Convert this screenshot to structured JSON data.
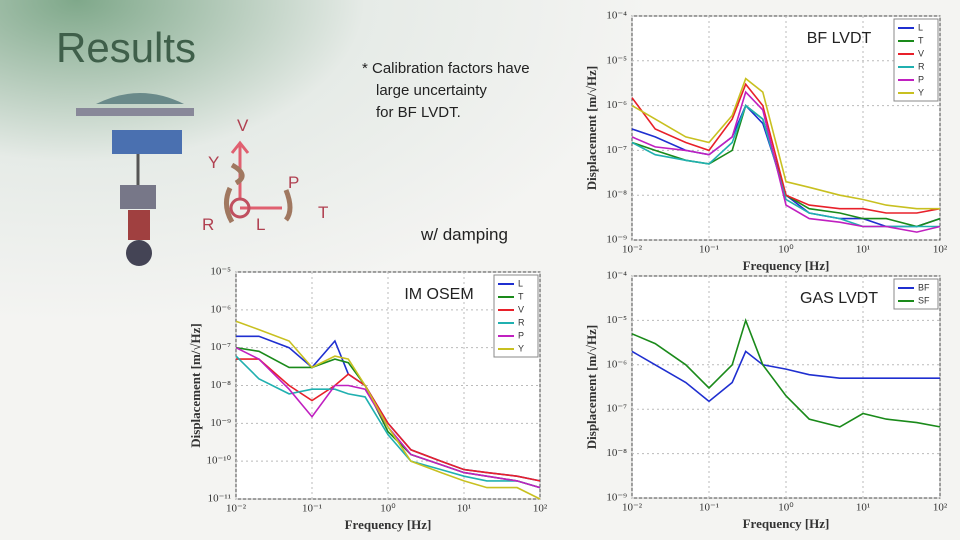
{
  "slide": {
    "title": "Results",
    "note": [
      "* Calibration factors have",
      "large uncertainty",
      "for BF LVDT."
    ],
    "caption": "w/ damping",
    "dof_labels": [
      "V",
      "Y",
      "P",
      "R",
      "L",
      "T"
    ]
  },
  "chart_data": [
    {
      "type": "line",
      "title": "BF LVDT",
      "x_label": "Frequency [Hz]",
      "y_label": "Displacement [m/√Hz]",
      "log_x": true,
      "log_y": true,
      "grid": true,
      "legend": "upper right",
      "x": [
        0.01,
        0.02,
        0.05,
        0.1,
        0.2,
        0.3,
        0.5,
        1,
        2,
        5,
        10,
        20,
        50,
        100
      ],
      "xlim": [
        0.01,
        100
      ],
      "xticks": [
        {
          "value": 0.01,
          "label": "10⁻²"
        },
        {
          "value": 0.1,
          "label": "10⁻¹"
        },
        {
          "value": 1,
          "label": "10⁰"
        },
        {
          "value": 10,
          "label": "10¹"
        },
        {
          "value": 100,
          "label": "10²"
        }
      ],
      "ylim": [
        1e-09,
        0.0001
      ],
      "yticks": [
        {
          "value": 0.0001,
          "label": "10⁻⁴"
        },
        {
          "value": 1e-05,
          "label": "10⁻⁵"
        },
        {
          "value": 1e-06,
          "label": "10⁻⁶"
        },
        {
          "value": 1e-07,
          "label": "10⁻⁷"
        },
        {
          "value": 1e-08,
          "label": "10⁻⁸"
        },
        {
          "value": 1e-09,
          "label": "10⁻⁹"
        }
      ],
      "series": [
        {
          "name": "L",
          "color": "#1f2fd0",
          "values": [
            3e-07,
            2e-07,
            1e-07,
            8e-08,
            2e-07,
            1e-06,
            4e-07,
            1e-08,
            4e-09,
            3e-09,
            3e-09,
            2e-09,
            2e-09,
            3e-09
          ]
        },
        {
          "name": "T",
          "color": "#1a8a1a",
          "values": [
            1.5e-07,
            1e-07,
            6e-08,
            5e-08,
            1e-07,
            1e-06,
            5e-07,
            1e-08,
            5e-09,
            4e-09,
            3e-09,
            3e-09,
            2e-09,
            3e-09
          ]
        },
        {
          "name": "V",
          "color": "#e8202a",
          "values": [
            1.5e-06,
            3e-07,
            1.5e-07,
            1e-07,
            5e-07,
            3e-06,
            1e-06,
            1e-08,
            6e-09,
            5e-09,
            5e-09,
            4e-09,
            4e-09,
            5e-09
          ]
        },
        {
          "name": "R",
          "color": "#20b0b0",
          "values": [
            1.5e-07,
            8e-08,
            6e-08,
            5e-08,
            1.5e-07,
            1e-06,
            5e-07,
            8e-09,
            4e-09,
            3e-09,
            2e-09,
            2e-09,
            2e-09,
            2e-09
          ]
        },
        {
          "name": "P",
          "color": "#c020c0",
          "values": [
            2e-07,
            1.2e-07,
            1e-07,
            8e-08,
            2e-07,
            2e-06,
            8e-07,
            6e-09,
            3e-09,
            2.5e-09,
            2e-09,
            2e-09,
            1.5e-09,
            2e-09
          ]
        },
        {
          "name": "Y",
          "color": "#c8c020",
          "values": [
            1e-06,
            5e-07,
            2e-07,
            1.5e-07,
            6e-07,
            4e-06,
            2e-06,
            2e-08,
            1.5e-08,
            1e-08,
            8e-09,
            6e-09,
            5e-09,
            5e-09
          ]
        }
      ]
    },
    {
      "type": "line",
      "title": "IM OSEM",
      "x_label": "Frequency [Hz]",
      "y_label": "Displacement [m/√Hz]",
      "log_x": true,
      "log_y": true,
      "grid": true,
      "legend": "upper right",
      "x": [
        0.01,
        0.02,
        0.05,
        0.1,
        0.2,
        0.3,
        0.5,
        1,
        2,
        5,
        10,
        20,
        50,
        100
      ],
      "xlim": [
        0.01,
        100
      ],
      "xticks": [
        {
          "value": 0.01,
          "label": "10⁻²"
        },
        {
          "value": 0.1,
          "label": "10⁻¹"
        },
        {
          "value": 1,
          "label": "10⁰"
        },
        {
          "value": 10,
          "label": "10¹"
        },
        {
          "value": 100,
          "label": "10²"
        }
      ],
      "ylim": [
        1e-11,
        1e-05
      ],
      "yticks": [
        {
          "value": 1e-05,
          "label": "10⁻⁵"
        },
        {
          "value": 1e-06,
          "label": "10⁻⁶"
        },
        {
          "value": 1e-07,
          "label": "10⁻⁷"
        },
        {
          "value": 1e-08,
          "label": "10⁻⁸"
        },
        {
          "value": 1e-09,
          "label": "10⁻⁹"
        },
        {
          "value": 1e-10,
          "label": "10⁻¹⁰"
        },
        {
          "value": 1e-11,
          "label": "10⁻¹¹"
        }
      ],
      "series": [
        {
          "name": "L",
          "color": "#1f2fd0",
          "values": [
            2e-07,
            2e-07,
            1e-07,
            3e-08,
            1.5e-07,
            2e-08,
            1e-08,
            1e-09,
            2e-10,
            1e-10,
            6e-11,
            5e-11,
            4e-11,
            3e-11
          ]
        },
        {
          "name": "T",
          "color": "#1a8a1a",
          "values": [
            1e-07,
            8e-08,
            3e-08,
            3e-08,
            5e-08,
            4e-08,
            1e-08,
            6e-10,
            1.5e-10,
            8e-11,
            5e-11,
            4e-11,
            3e-11,
            2e-11
          ]
        },
        {
          "name": "V",
          "color": "#e8202a",
          "values": [
            5e-08,
            5e-08,
            1e-08,
            4e-09,
            1e-08,
            2e-08,
            1e-08,
            1e-09,
            2e-10,
            1e-10,
            6e-11,
            5e-11,
            4e-11,
            3e-11
          ]
        },
        {
          "name": "R",
          "color": "#20b0b0",
          "values": [
            6e-08,
            1.5e-08,
            6e-09,
            8e-09,
            8e-09,
            6e-09,
            5e-09,
            5e-10,
            1e-10,
            6e-11,
            4e-11,
            3e-11,
            3e-11,
            2e-11
          ]
        },
        {
          "name": "P",
          "color": "#c020c0",
          "values": [
            1e-07,
            5e-08,
            8e-09,
            1.5e-09,
            1e-08,
            1e-08,
            8e-09,
            8e-10,
            1.5e-10,
            8e-11,
            5e-11,
            4e-11,
            3e-11,
            2e-11
          ]
        },
        {
          "name": "Y",
          "color": "#c8c020",
          "values": [
            5e-07,
            3e-07,
            1.5e-07,
            3e-08,
            6e-08,
            5e-08,
            1e-08,
            8e-10,
            1e-10,
            5e-11,
            3e-11,
            2e-11,
            2e-11,
            1e-11
          ]
        }
      ]
    },
    {
      "type": "line",
      "title": "GAS LVDT",
      "x_label": "Frequency [Hz]",
      "y_label": "Displacement [m/√Hz]",
      "log_x": true,
      "log_y": true,
      "grid": true,
      "legend": "upper right",
      "x": [
        0.01,
        0.02,
        0.05,
        0.1,
        0.2,
        0.3,
        0.5,
        1,
        2,
        5,
        10,
        20,
        50,
        100
      ],
      "xlim": [
        0.01,
        100
      ],
      "xticks": [
        {
          "value": 0.01,
          "label": "10⁻²"
        },
        {
          "value": 0.1,
          "label": "10⁻¹"
        },
        {
          "value": 1,
          "label": "10⁰"
        },
        {
          "value": 10,
          "label": "10¹"
        },
        {
          "value": 100,
          "label": "10²"
        }
      ],
      "ylim": [
        1e-09,
        0.0001
      ],
      "yticks": [
        {
          "value": 0.0001,
          "label": "10⁻⁴"
        },
        {
          "value": 1e-05,
          "label": "10⁻⁵"
        },
        {
          "value": 1e-06,
          "label": "10⁻⁶"
        },
        {
          "value": 1e-07,
          "label": "10⁻⁷"
        },
        {
          "value": 1e-08,
          "label": "10⁻⁸"
        },
        {
          "value": 1e-09,
          "label": "10⁻⁹"
        }
      ],
      "series": [
        {
          "name": "BF",
          "color": "#1f2fd0",
          "values": [
            2e-06,
            1e-06,
            4e-07,
            1.5e-07,
            4e-07,
            2e-06,
            1e-06,
            8e-07,
            6e-07,
            5e-07,
            5e-07,
            5e-07,
            5e-07,
            5e-07
          ]
        },
        {
          "name": "SF",
          "color": "#1a8a1a",
          "values": [
            5e-06,
            3e-06,
            1e-06,
            3e-07,
            1e-06,
            1e-05,
            1e-06,
            2e-07,
            6e-08,
            4e-08,
            8e-08,
            6e-08,
            5e-08,
            4e-08
          ]
        }
      ]
    }
  ]
}
